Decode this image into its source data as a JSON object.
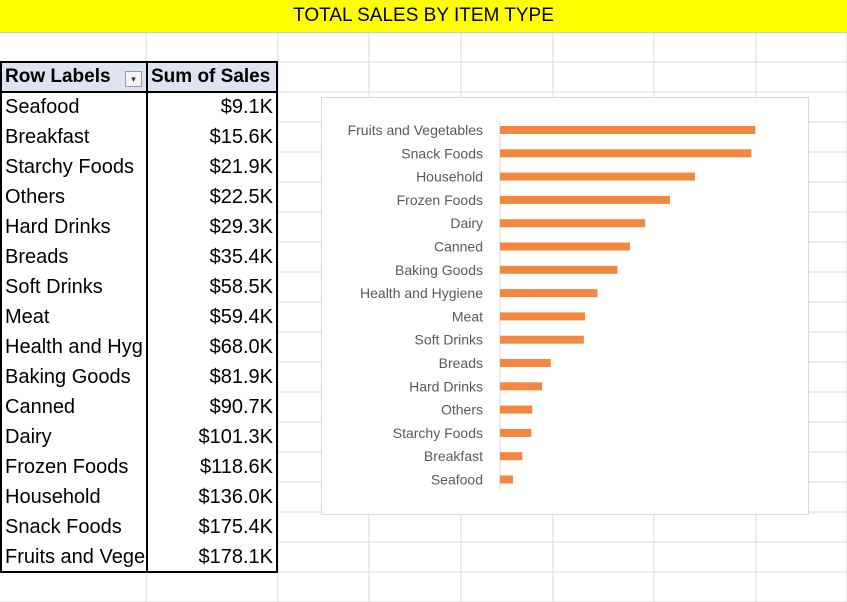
{
  "sheet": {
    "title": "TOTAL SALES BY ITEM TYPE"
  },
  "pivot": {
    "header_label": "Row Labels",
    "header_value": "Sum of Sales",
    "filter_icon": "filter-dropdown-icon",
    "rows": [
      {
        "label": "Seafood",
        "value": "$9.1K"
      },
      {
        "label": "Breakfast",
        "value": "$15.6K"
      },
      {
        "label": "Starchy Foods",
        "value": "$21.9K"
      },
      {
        "label": "Others",
        "value": "$22.5K"
      },
      {
        "label": "Hard Drinks",
        "value": "$29.3K"
      },
      {
        "label": "Breads",
        "value": "$35.4K"
      },
      {
        "label": "Soft Drinks",
        "value": "$58.5K"
      },
      {
        "label": "Meat",
        "value": "$59.4K"
      },
      {
        "label": "Health and Hyg",
        "value": "$68.0K"
      },
      {
        "label": "Baking Goods",
        "value": "$81.9K"
      },
      {
        "label": "Canned",
        "value": "$90.7K"
      },
      {
        "label": "Dairy",
        "value": "$101.3K"
      },
      {
        "label": "Frozen Foods",
        "value": "$118.6K"
      },
      {
        "label": "Household",
        "value": "$136.0K"
      },
      {
        "label": "Snack Foods",
        "value": "$175.4K"
      },
      {
        "label": "Fruits and Vege",
        "value": "$178.1K"
      }
    ]
  },
  "chart_data": {
    "type": "bar",
    "orientation": "horizontal",
    "title": "",
    "xlabel": "",
    "ylabel": "",
    "categories": [
      "Fruits and Vegetables",
      "Snack Foods",
      "Household",
      "Frozen Foods",
      "Dairy",
      "Canned",
      "Baking Goods",
      "Health and Hygiene",
      "Meat",
      "Soft Drinks",
      "Breads",
      "Hard Drinks",
      "Others",
      "Starchy Foods",
      "Breakfast",
      "Seafood"
    ],
    "values": [
      178.1,
      175.4,
      136.0,
      118.6,
      101.3,
      90.7,
      81.9,
      68.0,
      59.4,
      58.5,
      35.4,
      29.3,
      22.5,
      21.9,
      15.6,
      9.1
    ],
    "units": "$K",
    "xlim": [
      0,
      180
    ],
    "grid": false,
    "legend": "none",
    "bar_color": "#f4873f"
  }
}
